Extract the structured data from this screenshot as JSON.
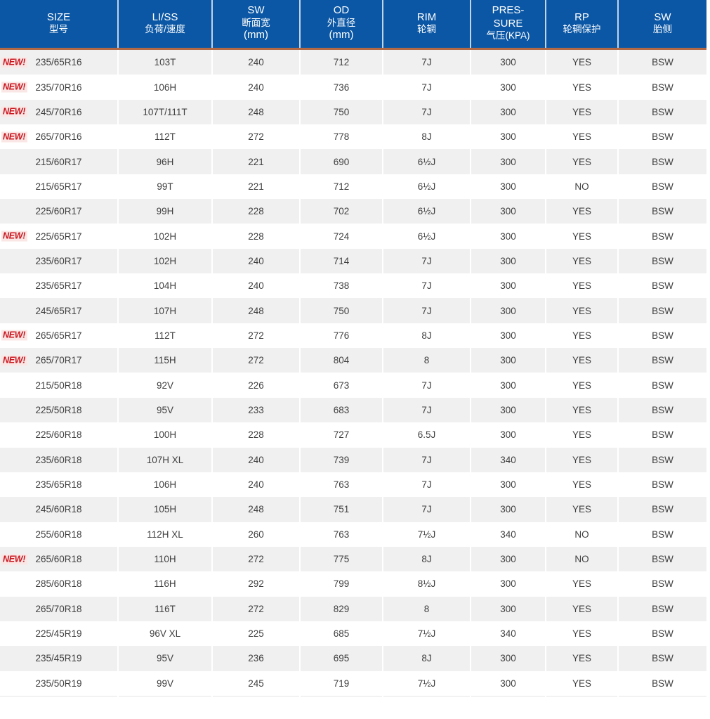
{
  "labels": {
    "new_badge": "NEW!"
  },
  "colors": {
    "header_bg": "#0b57a5",
    "header_text": "#ffffff",
    "accent_underline": "#b26946",
    "row_alt_bg": "#f0f0f0",
    "row_bg": "#ffffff",
    "cell_text": "#3f3f3f",
    "new_badge_text": "#c9161f",
    "new_badge_bg": "#fae7e5"
  },
  "chart_data": {
    "type": "table",
    "columns": [
      {
        "key": "size",
        "lines": [
          "SIZE",
          "型号"
        ]
      },
      {
        "key": "li_ss",
        "lines": [
          "LI/SS",
          "负荷/速度"
        ]
      },
      {
        "key": "sw",
        "lines": [
          "SW",
          "断面宽",
          "(mm)"
        ]
      },
      {
        "key": "od",
        "lines": [
          "OD",
          "外直径",
          "(mm)"
        ]
      },
      {
        "key": "rim",
        "lines": [
          "RIM",
          "轮辋"
        ]
      },
      {
        "key": "pressure",
        "lines": [
          "PRES-",
          "SURE",
          "气压(KPA)"
        ]
      },
      {
        "key": "rp",
        "lines": [
          "RP",
          "轮辋保护"
        ]
      },
      {
        "key": "sw_sidewall",
        "lines": [
          "SW",
          "胎侧"
        ]
      }
    ],
    "rows": [
      {
        "new": true,
        "size": "235/65R16",
        "li_ss": "103T",
        "sw": "240",
        "od": "712",
        "rim": "7J",
        "pressure": "300",
        "rp": "YES",
        "sw_sidewall": "BSW"
      },
      {
        "new": true,
        "size": "235/70R16",
        "li_ss": "106H",
        "sw": "240",
        "od": "736",
        "rim": "7J",
        "pressure": "300",
        "rp": "YES",
        "sw_sidewall": "BSW"
      },
      {
        "new": true,
        "size": "245/70R16",
        "li_ss": "107T/111T",
        "sw": "248",
        "od": "750",
        "rim": "7J",
        "pressure": "300",
        "rp": "YES",
        "sw_sidewall": "BSW"
      },
      {
        "new": true,
        "size": "265/70R16",
        "li_ss": "112T",
        "sw": "272",
        "od": "778",
        "rim": "8J",
        "pressure": "300",
        "rp": "YES",
        "sw_sidewall": "BSW"
      },
      {
        "new": false,
        "size": "215/60R17",
        "li_ss": "96H",
        "sw": "221",
        "od": "690",
        "rim": "6½J",
        "pressure": "300",
        "rp": "YES",
        "sw_sidewall": "BSW"
      },
      {
        "new": false,
        "size": "215/65R17",
        "li_ss": "99T",
        "sw": "221",
        "od": "712",
        "rim": "6½J",
        "pressure": "300",
        "rp": "NO",
        "sw_sidewall": "BSW"
      },
      {
        "new": false,
        "size": "225/60R17",
        "li_ss": "99H",
        "sw": "228",
        "od": "702",
        "rim": "6½J",
        "pressure": "300",
        "rp": "YES",
        "sw_sidewall": "BSW"
      },
      {
        "new": true,
        "size": "225/65R17",
        "li_ss": "102H",
        "sw": "228",
        "od": "724",
        "rim": "6½J",
        "pressure": "300",
        "rp": "YES",
        "sw_sidewall": "BSW"
      },
      {
        "new": false,
        "size": "235/60R17",
        "li_ss": "102H",
        "sw": "240",
        "od": "714",
        "rim": "7J",
        "pressure": "300",
        "rp": "YES",
        "sw_sidewall": "BSW"
      },
      {
        "new": false,
        "size": "235/65R17",
        "li_ss": "104H",
        "sw": "240",
        "od": "738",
        "rim": "7J",
        "pressure": "300",
        "rp": "YES",
        "sw_sidewall": "BSW"
      },
      {
        "new": false,
        "size": "245/65R17",
        "li_ss": "107H",
        "sw": "248",
        "od": "750",
        "rim": "7J",
        "pressure": "300",
        "rp": "YES",
        "sw_sidewall": "BSW"
      },
      {
        "new": true,
        "size": "265/65R17",
        "li_ss": "112T",
        "sw": "272",
        "od": "776",
        "rim": "8J",
        "pressure": "300",
        "rp": "YES",
        "sw_sidewall": "BSW"
      },
      {
        "new": true,
        "size": "265/70R17",
        "li_ss": "115H",
        "sw": "272",
        "od": "804",
        "rim": "8",
        "pressure": "300",
        "rp": "YES",
        "sw_sidewall": "BSW"
      },
      {
        "new": false,
        "size": "215/50R18",
        "li_ss": "92V",
        "sw": "226",
        "od": "673",
        "rim": "7J",
        "pressure": "300",
        "rp": "YES",
        "sw_sidewall": "BSW"
      },
      {
        "new": false,
        "size": "225/50R18",
        "li_ss": "95V",
        "sw": "233",
        "od": "683",
        "rim": "7J",
        "pressure": "300",
        "rp": "YES",
        "sw_sidewall": "BSW"
      },
      {
        "new": false,
        "size": "225/60R18",
        "li_ss": "100H",
        "sw": "228",
        "od": "727",
        "rim": "6.5J",
        "pressure": "300",
        "rp": "YES",
        "sw_sidewall": "BSW"
      },
      {
        "new": false,
        "size": "235/60R18",
        "li_ss": "107H XL",
        "sw": "240",
        "od": "739",
        "rim": "7J",
        "pressure": "340",
        "rp": "YES",
        "sw_sidewall": "BSW"
      },
      {
        "new": false,
        "size": "235/65R18",
        "li_ss": "106H",
        "sw": "240",
        "od": "763",
        "rim": "7J",
        "pressure": "300",
        "rp": "YES",
        "sw_sidewall": "BSW"
      },
      {
        "new": false,
        "size": "245/60R18",
        "li_ss": "105H",
        "sw": "248",
        "od": "751",
        "rim": "7J",
        "pressure": "300",
        "rp": "YES",
        "sw_sidewall": "BSW"
      },
      {
        "new": false,
        "size": "255/60R18",
        "li_ss": "112H XL",
        "sw": "260",
        "od": "763",
        "rim": "7½J",
        "pressure": "340",
        "rp": "NO",
        "sw_sidewall": "BSW"
      },
      {
        "new": true,
        "size": "265/60R18",
        "li_ss": "110H",
        "sw": "272",
        "od": "775",
        "rim": "8J",
        "pressure": "300",
        "rp": "NO",
        "sw_sidewall": "BSW"
      },
      {
        "new": false,
        "size": "285/60R18",
        "li_ss": "116H",
        "sw": "292",
        "od": "799",
        "rim": "8½J",
        "pressure": "300",
        "rp": "YES",
        "sw_sidewall": "BSW"
      },
      {
        "new": false,
        "size": "265/70R18",
        "li_ss": "116T",
        "sw": "272",
        "od": "829",
        "rim": "8",
        "pressure": "300",
        "rp": "YES",
        "sw_sidewall": "BSW"
      },
      {
        "new": false,
        "size": "225/45R19",
        "li_ss": "96V XL",
        "sw": "225",
        "od": "685",
        "rim": "7½J",
        "pressure": "340",
        "rp": "YES",
        "sw_sidewall": "BSW"
      },
      {
        "new": false,
        "size": "235/45R19",
        "li_ss": "95V",
        "sw": "236",
        "od": "695",
        "rim": "8J",
        "pressure": "300",
        "rp": "YES",
        "sw_sidewall": "BSW"
      },
      {
        "new": false,
        "size": "235/50R19",
        "li_ss": "99V",
        "sw": "245",
        "od": "719",
        "rim": "7½J",
        "pressure": "300",
        "rp": "YES",
        "sw_sidewall": "BSW"
      }
    ]
  }
}
